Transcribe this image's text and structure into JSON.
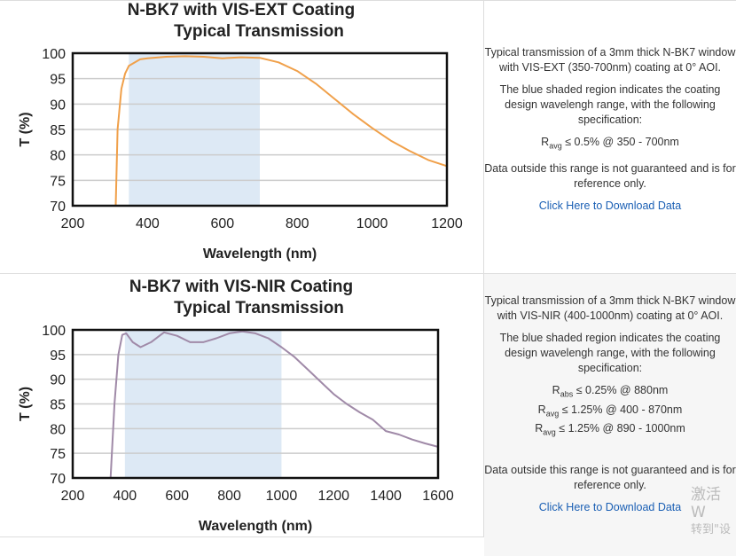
{
  "chart_data": [
    {
      "type": "line",
      "title": "N-BK7 with VIS-EXT Coating",
      "subtitle": "Typical Transmission",
      "xlabel": "Wavelength (nm)",
      "ylabel": "T (%)",
      "xlim": [
        200,
        1200
      ],
      "ylim": [
        70,
        100
      ],
      "xticks": [
        200,
        400,
        600,
        800,
        1000,
        1200
      ],
      "yticks": [
        70,
        75,
        80,
        85,
        90,
        95,
        100
      ],
      "grid": "horizontal",
      "line_color": "#f0a04a",
      "shaded_region": [
        350,
        700
      ],
      "shade_color": "#dde9f5",
      "x": [
        315,
        320,
        330,
        340,
        350,
        380,
        400,
        450,
        500,
        550,
        600,
        650,
        700,
        750,
        800,
        850,
        900,
        950,
        1000,
        1050,
        1100,
        1150,
        1200
      ],
      "y": [
        70,
        85,
        93,
        96,
        97.5,
        98.8,
        99,
        99.3,
        99.4,
        99.3,
        99,
        99.2,
        99.1,
        98.2,
        96.5,
        94,
        91,
        88,
        85.3,
        82.8,
        80.8,
        79,
        77.8
      ]
    },
    {
      "type": "line",
      "title": "N-BK7 with VIS-NIR Coating",
      "subtitle": "Typical Transmission",
      "xlabel": "Wavelength (nm)",
      "ylabel": "T (%)",
      "xlim": [
        200,
        1600
      ],
      "ylim": [
        70,
        100
      ],
      "xticks": [
        200,
        400,
        600,
        800,
        1000,
        1200,
        1400,
        1600
      ],
      "yticks": [
        70,
        75,
        80,
        85,
        90,
        95,
        100
      ],
      "grid": "horizontal",
      "line_color": "#a08aa8",
      "shaded_region": [
        400,
        1000
      ],
      "shade_color": "#dde9f5",
      "x": [
        345,
        360,
        375,
        390,
        405,
        430,
        460,
        500,
        550,
        600,
        650,
        700,
        750,
        800,
        850,
        900,
        950,
        1000,
        1050,
        1100,
        1150,
        1200,
        1250,
        1300,
        1350,
        1400,
        1450,
        1500,
        1550,
        1600
      ],
      "y": [
        70,
        85,
        95,
        99,
        99.3,
        97.5,
        96.5,
        97.5,
        99.5,
        98.8,
        97.5,
        97.5,
        98.3,
        99.3,
        99.7,
        99.3,
        98.3,
        96.5,
        94.5,
        92,
        89.5,
        87,
        85,
        83.3,
        81.8,
        79.5,
        78.8,
        77.8,
        77,
        76.3
      ]
    }
  ],
  "panels": [
    {
      "desc1": "Typical transmission of a 3mm thick N-BK7 window with VIS-EXT (350-700nm) coating at 0° AOI.",
      "desc2": "The blue shaded region indicates the coating design wavelengh range, with the following specification:",
      "specs": [
        {
          "sym": "R",
          "sub": "avg",
          "text": "≤ 0.5% @ 350 - 700nm"
        }
      ],
      "desc3": "Data outside this range is not guaranteed and is for reference only.",
      "link": "Click Here to Download Data"
    },
    {
      "desc1": "Typical transmission of a 3mm thick N-BK7 window with VIS-NIR (400-1000nm) coating at 0° AOI.",
      "desc2": "The blue shaded region indicates the coating design wavelengh range, with the following specification:",
      "specs": [
        {
          "sym": "R",
          "sub": "abs",
          "text": "≤ 0.25% @ 880nm"
        },
        {
          "sym": "R",
          "sub": "avg",
          "text": "≤ 1.25% @ 400 - 870nm"
        },
        {
          "sym": "R",
          "sub": "avg",
          "text": "≤ 1.25% @ 890 - 1000nm"
        }
      ],
      "desc3": "Data outside this range is not guaranteed and is for reference only.",
      "link": "Click Here to Download Data"
    }
  ],
  "watermark": {
    "line1": "激活 W",
    "line2": "转到\"设"
  }
}
